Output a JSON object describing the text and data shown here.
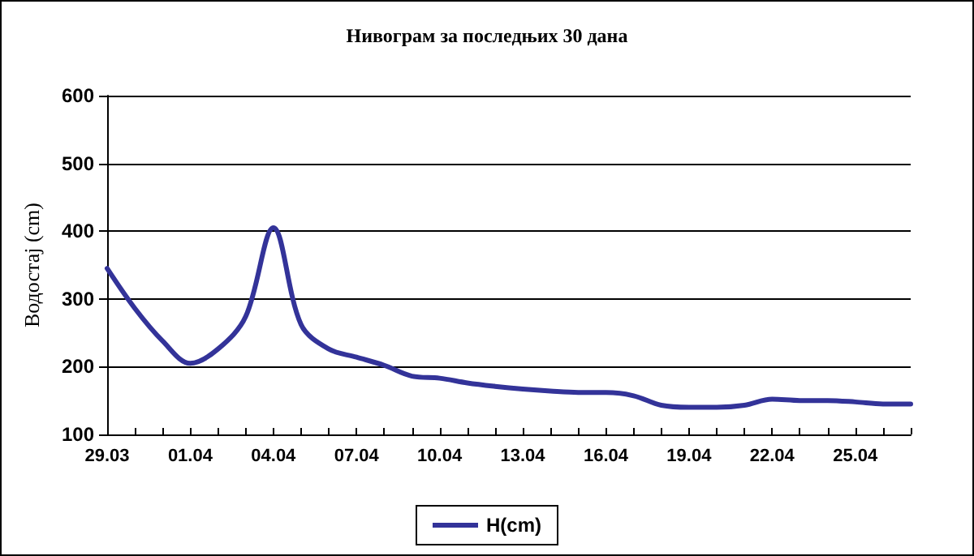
{
  "chart_data": {
    "type": "line",
    "title": "Нивограм за последњих 30 дана",
    "ylabel": "Водостај (cm)",
    "categories": [
      "29.03",
      null,
      null,
      "01.04",
      null,
      null,
      "04.04",
      null,
      null,
      "07.04",
      null,
      null,
      "10.04",
      null,
      null,
      "13.04",
      null,
      null,
      "16.04",
      null,
      null,
      "19.04",
      null,
      null,
      "22.04",
      null,
      null,
      "25.04",
      null,
      null
    ],
    "series": [
      {
        "name": "H(cm)",
        "color": "#333399",
        "values": [
          345,
          286,
          238,
          205,
          226,
          274,
          405,
          262,
          226,
          214,
          202,
          186,
          183,
          176,
          171,
          167,
          164,
          162,
          162,
          157,
          143,
          140,
          140,
          143,
          152,
          150,
          150,
          148,
          145,
          145
        ]
      }
    ],
    "ylim": [
      100,
      600
    ],
    "yticks": [
      100,
      200,
      300,
      400,
      500,
      600
    ],
    "grid": "y",
    "legend": "bottom",
    "marker": "none",
    "line_style": "solid"
  }
}
